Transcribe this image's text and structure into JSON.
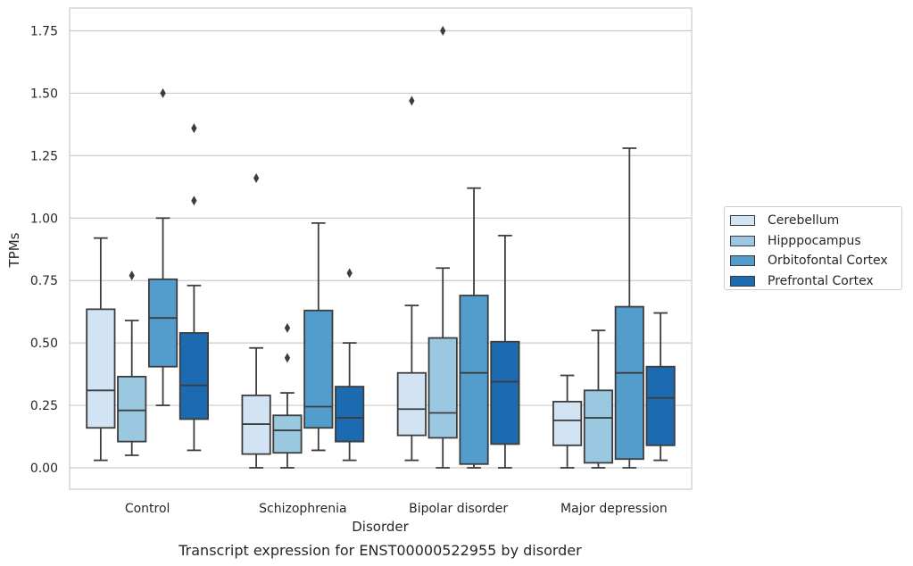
{
  "chart_data": {
    "type": "boxplot",
    "title": "Transcript expression for ENST00000522955 by disorder",
    "xlabel": "Disorder",
    "ylabel": "TPMs",
    "ylim": [
      -0.085,
      1.84
    ],
    "yticks": [
      "0.00",
      "0.25",
      "0.50",
      "0.75",
      "1.00",
      "1.25",
      "1.50",
      "1.75"
    ],
    "categories": [
      "Control",
      "Schizophrenia",
      "Bipolar disorder",
      "Major depression"
    ],
    "grid": "horizontal",
    "legend_placement": "right",
    "series": [
      {
        "name": "Cerebellum",
        "color": "#d2e3f3",
        "boxes": [
          {
            "whislo": 0.03,
            "q1": 0.16,
            "med": 0.31,
            "q3": 0.635,
            "whishi": 0.92,
            "fliers": []
          },
          {
            "whislo": 0.0,
            "q1": 0.055,
            "med": 0.175,
            "q3": 0.29,
            "whishi": 0.48,
            "fliers": [
              1.16
            ]
          },
          {
            "whislo": 0.03,
            "q1": 0.13,
            "med": 0.235,
            "q3": 0.38,
            "whishi": 0.65,
            "fliers": [
              1.47
            ]
          },
          {
            "whislo": 0.0,
            "q1": 0.09,
            "med": 0.19,
            "q3": 0.265,
            "whishi": 0.37,
            "fliers": []
          }
        ]
      },
      {
        "name": "Hipppocampus",
        "color": "#9ac8e0",
        "boxes": [
          {
            "whislo": 0.05,
            "q1": 0.105,
            "med": 0.23,
            "q3": 0.365,
            "whishi": 0.59,
            "fliers": [
              0.77
            ]
          },
          {
            "whislo": 0.0,
            "q1": 0.06,
            "med": 0.15,
            "q3": 0.21,
            "whishi": 0.3,
            "fliers": [
              0.44,
              0.56
            ]
          },
          {
            "whislo": 0.0,
            "q1": 0.12,
            "med": 0.22,
            "q3": 0.52,
            "whishi": 0.8,
            "fliers": [
              1.75
            ]
          },
          {
            "whislo": 0.0,
            "q1": 0.02,
            "med": 0.2,
            "q3": 0.31,
            "whishi": 0.55,
            "fliers": []
          }
        ]
      },
      {
        "name": "Orbitofontal Cortex",
        "color": "#529dcc",
        "boxes": [
          {
            "whislo": 0.25,
            "q1": 0.405,
            "med": 0.6,
            "q3": 0.755,
            "whishi": 1.0,
            "fliers": [
              1.5
            ]
          },
          {
            "whislo": 0.07,
            "q1": 0.16,
            "med": 0.245,
            "q3": 0.63,
            "whishi": 0.98,
            "fliers": []
          },
          {
            "whislo": 0.0,
            "q1": 0.015,
            "med": 0.38,
            "q3": 0.69,
            "whishi": 1.12,
            "fliers": []
          },
          {
            "whislo": 0.0,
            "q1": 0.035,
            "med": 0.38,
            "q3": 0.645,
            "whishi": 1.28,
            "fliers": []
          }
        ]
      },
      {
        "name": "Prefrontal Cortex",
        "color": "#1c6aaf",
        "boxes": [
          {
            "whislo": 0.07,
            "q1": 0.195,
            "med": 0.33,
            "q3": 0.54,
            "whishi": 0.73,
            "fliers": [
              1.07,
              1.36
            ]
          },
          {
            "whislo": 0.03,
            "q1": 0.105,
            "med": 0.2,
            "q3": 0.325,
            "whishi": 0.5,
            "fliers": [
              0.78
            ]
          },
          {
            "whislo": 0.0,
            "q1": 0.095,
            "med": 0.345,
            "q3": 0.505,
            "whishi": 0.93,
            "fliers": []
          },
          {
            "whislo": 0.03,
            "q1": 0.09,
            "med": 0.28,
            "q3": 0.405,
            "whishi": 0.62,
            "fliers": []
          }
        ]
      }
    ]
  }
}
